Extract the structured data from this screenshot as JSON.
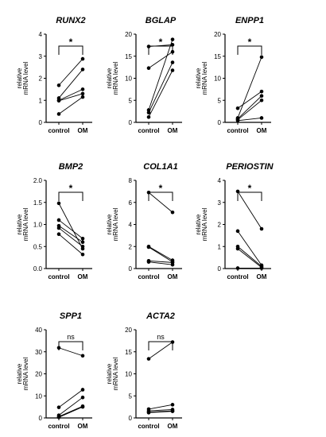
{
  "figure": {
    "ylabel_line1": "relative",
    "ylabel_line2": "mRNA level"
  },
  "chart_data": [
    {
      "type": "scatter",
      "title": "RUNX2",
      "categories": [
        "control",
        "OM"
      ],
      "ylabel": "relative mRNA level",
      "ylim": [
        0,
        4
      ],
      "yticks": [
        0,
        1,
        2,
        3,
        4
      ],
      "significance": "*",
      "pairs": [
        [
          1.68,
          2.88
        ],
        [
          1.1,
          2.4
        ],
        [
          1.0,
          1.5
        ],
        [
          0.98,
          1.3
        ],
        [
          0.38,
          1.15
        ]
      ]
    },
    {
      "type": "scatter",
      "title": "BGLAP",
      "categories": [
        "control",
        "OM"
      ],
      "ylabel": "relative mRNA level",
      "ylim": [
        0,
        20
      ],
      "yticks": [
        0,
        5,
        10,
        15,
        20
      ],
      "significance": "*",
      "pairs": [
        [
          17.2,
          17.6
        ],
        [
          12.3,
          16.0
        ],
        [
          2.8,
          18.8
        ],
        [
          2.2,
          13.6
        ],
        [
          1.2,
          11.8
        ]
      ]
    },
    {
      "type": "scatter",
      "title": "ENPP1",
      "categories": [
        "control",
        "OM"
      ],
      "ylabel": "relative mRNA level",
      "ylim": [
        0,
        20
      ],
      "yticks": [
        0,
        5,
        10,
        15,
        20
      ],
      "significance": "*",
      "pairs": [
        [
          3.2,
          7.0
        ],
        [
          1.0,
          14.8
        ],
        [
          0.8,
          6.0
        ],
        [
          0.6,
          5.0
        ],
        [
          0.4,
          1.0
        ]
      ]
    },
    {
      "type": "scatter",
      "title": "BMP2",
      "categories": [
        "control",
        "OM"
      ],
      "ylabel": "relative mRNA level",
      "ylim": [
        0,
        2.0
      ],
      "yticks": [
        "0.0",
        "0.5",
        "1.0",
        "1.5",
        "2.0"
      ],
      "significance": "*",
      "pairs": [
        [
          1.48,
          0.45
        ],
        [
          1.1,
          0.68
        ],
        [
          0.97,
          0.6
        ],
        [
          0.92,
          0.5
        ],
        [
          0.78,
          0.32
        ]
      ]
    },
    {
      "type": "scatter",
      "title": "COL1A1",
      "categories": [
        "control",
        "OM"
      ],
      "ylabel": "relative mRNA level",
      "ylim": [
        0,
        8
      ],
      "yticks": [
        0,
        2,
        4,
        6,
        8
      ],
      "significance": "*",
      "pairs": [
        [
          6.9,
          5.1
        ],
        [
          2.0,
          0.75
        ],
        [
          1.95,
          0.6
        ],
        [
          0.7,
          0.55
        ],
        [
          0.6,
          0.35
        ]
      ]
    },
    {
      "type": "scatter",
      "title": "PERIOSTIN",
      "categories": [
        "control",
        "OM"
      ],
      "ylabel": "relative mRNA level",
      "ylim": [
        0,
        4
      ],
      "yticks": [
        0,
        1,
        2,
        3,
        4
      ],
      "significance": "*",
      "pairs": [
        [
          3.5,
          1.8
        ],
        [
          1.7,
          0.15
        ],
        [
          1.0,
          0.1
        ],
        [
          0.9,
          0.05
        ],
        [
          0.02,
          0.02
        ]
      ]
    },
    {
      "type": "scatter",
      "title": "SPP1",
      "categories": [
        "control",
        "OM"
      ],
      "ylabel": "relative mRNA level",
      "ylim": [
        0,
        40
      ],
      "yticks": [
        0,
        10,
        20,
        30,
        40
      ],
      "significance": "ns",
      "pairs": [
        [
          31.8,
          28.2
        ],
        [
          4.8,
          12.8
        ],
        [
          1.2,
          9.3
        ],
        [
          0.6,
          5.3
        ],
        [
          0.3,
          5.0
        ]
      ]
    },
    {
      "type": "scatter",
      "title": "ACTA2",
      "categories": [
        "control",
        "OM"
      ],
      "ylabel": "relative mRNA level",
      "ylim": [
        0,
        20
      ],
      "yticks": [
        0,
        5,
        10,
        15,
        20
      ],
      "significance": "ns",
      "pairs": [
        [
          13.4,
          17.2
        ],
        [
          2.0,
          3.0
        ],
        [
          1.6,
          1.9
        ],
        [
          1.3,
          1.6
        ],
        [
          1.2,
          1.5
        ]
      ]
    }
  ]
}
